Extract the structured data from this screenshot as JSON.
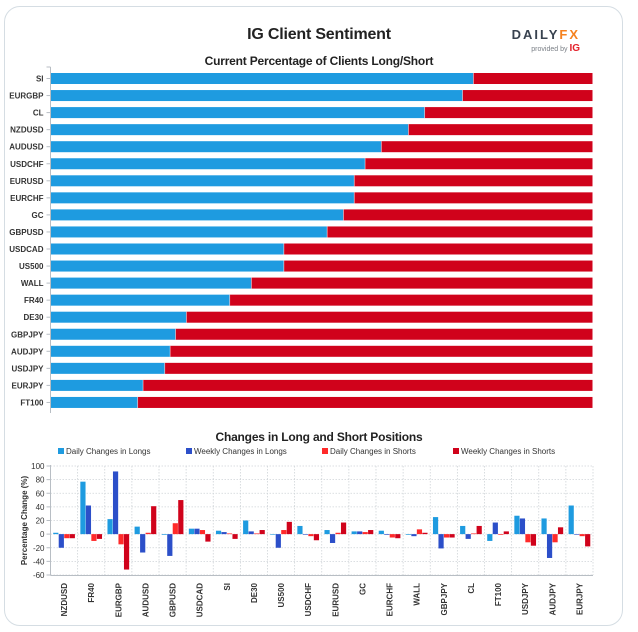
{
  "header": {
    "title": "IG Client Sentiment",
    "logo": {
      "brand_left": "DAILY",
      "brand_right": "FX",
      "provided_by": "provided by",
      "provider": "IG"
    }
  },
  "colors": {
    "long": "#1e9be0",
    "short": "#d0021b",
    "daily_long": "#1e9be0",
    "weekly_long": "#2c4fc9",
    "daily_short": "#ff2a2a",
    "weekly_short": "#d0021b"
  },
  "chart_data": [
    {
      "type": "bar",
      "orientation": "horizontal-stacked",
      "title": "Current Percentage of Clients Long/Short",
      "xlabel": "",
      "ylabel": "",
      "xlim": [
        0,
        100
      ],
      "categories": [
        "SI",
        "EURGBP",
        "CL",
        "NZDUSD",
        "AUDUSD",
        "USDCHF",
        "EURUSD",
        "EURCHF",
        "GC",
        "GBPUSD",
        "USDCAD",
        "US500",
        "WALL",
        "FR40",
        "DE30",
        "GBPJPY",
        "AUDJPY",
        "USDJPY",
        "EURJPY",
        "FT100"
      ],
      "series": [
        {
          "name": "Long",
          "values": [
            78,
            76,
            69,
            66,
            61,
            58,
            56,
            56,
            54,
            51,
            43,
            43,
            37,
            33,
            25,
            23,
            22,
            21,
            17,
            16
          ]
        },
        {
          "name": "Short",
          "values": [
            22,
            24,
            31,
            34,
            39,
            42,
            44,
            44,
            46,
            49,
            57,
            57,
            63,
            67,
            75,
            77,
            78,
            79,
            83,
            84
          ]
        }
      ]
    },
    {
      "type": "bar",
      "orientation": "vertical-grouped",
      "title": "Changes in Long and Short Positions",
      "xlabel": "",
      "ylabel": "Percentage Change (%)",
      "ylim": [
        -60,
        100
      ],
      "yticks": [
        100,
        80,
        60,
        40,
        20,
        0,
        -20,
        -40,
        -60
      ],
      "grid": true,
      "legend": "top",
      "categories": [
        "NZDUSD",
        "FR40",
        "EURGBP",
        "AUDUSD",
        "GBPUSD",
        "USDCAD",
        "SI",
        "DE30",
        "US500",
        "USDCHF",
        "EURUSD",
        "GC",
        "EURCHF",
        "WALL",
        "GBPJPY",
        "CL",
        "FT100",
        "USDJPY",
        "AUDJPY",
        "EURJPY"
      ],
      "series": [
        {
          "name": "Daily Changes in Longs",
          "values": [
            2,
            77,
            22,
            11,
            -1,
            8,
            5,
            20,
            0,
            12,
            6,
            4,
            5,
            -1,
            25,
            12,
            -10,
            27,
            23,
            42
          ]
        },
        {
          "name": "Weekly Changes in Longs",
          "values": [
            -20,
            42,
            92,
            -27,
            -32,
            8,
            3,
            4,
            -20,
            0,
            -13,
            4,
            -1,
            -3,
            -21,
            -7,
            17,
            23,
            -35,
            0
          ]
        },
        {
          "name": "Daily Changes in Shorts",
          "values": [
            -6,
            -10,
            -15,
            2,
            16,
            6,
            1,
            1,
            6,
            -3,
            2,
            3,
            -5,
            7,
            -5,
            1,
            -1,
            -12,
            -12,
            -3
          ]
        },
        {
          "name": "Weekly Changes in Shorts",
          "values": [
            -6,
            -7,
            -52,
            41,
            50,
            -11,
            -7,
            6,
            18,
            -9,
            17,
            6,
            -6,
            2,
            -5,
            12,
            4,
            -17,
            10,
            -18
          ]
        }
      ]
    }
  ]
}
